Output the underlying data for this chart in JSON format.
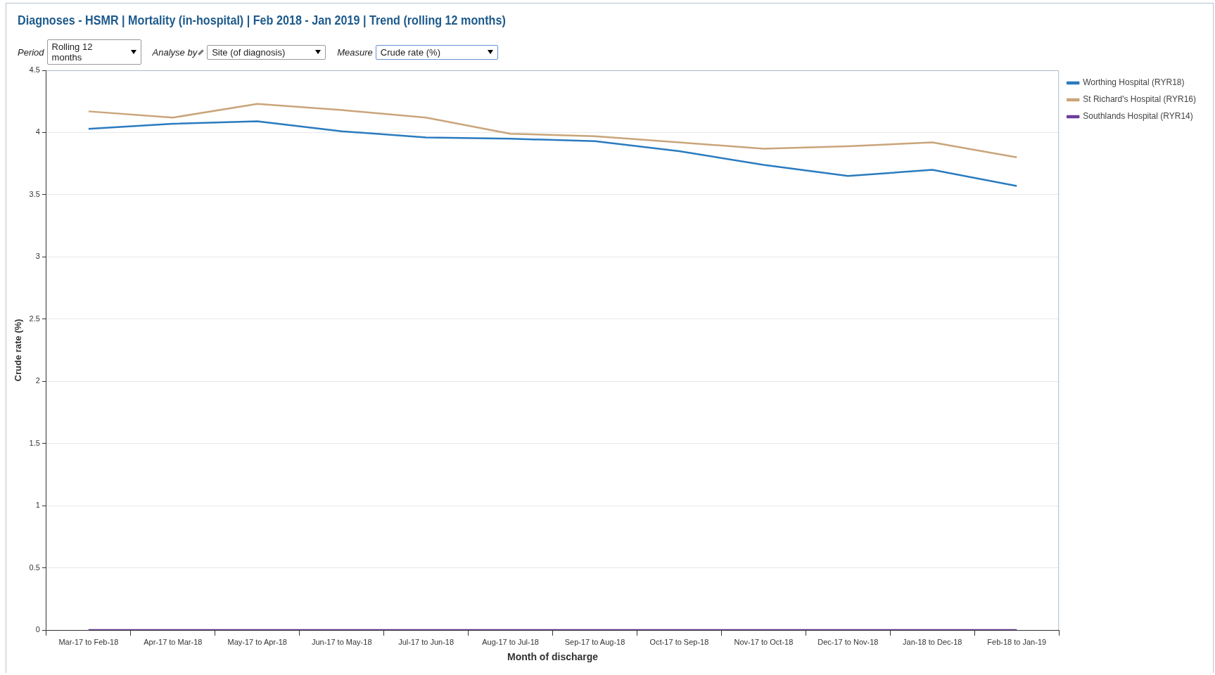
{
  "chart_data": {
    "type": "line",
    "title": "Diagnoses - HSMR | Mortality (in-hospital) | Feb 2018 - Jan 2019 | Trend (rolling 12 months)",
    "annotations": [
      "Period",
      "Rolling 12 months",
      "Analyse by",
      "Site (of diagnosis)",
      "Measure",
      "Crude rate (%)"
    ],
    "xlabel": "Month of discharge",
    "ylabel": "Crude rate (%)",
    "categories": [
      "Mar-17 to Feb-18",
      "Apr-17 to Mar-18",
      "May-17 to Apr-18",
      "Jun-17 to May-18",
      "Jul-17 to Jun-18",
      "Aug-17 to Jul-18",
      "Sep-17 to Aug-18",
      "Oct-17 to Sep-18",
      "Nov-17 to Oct-18",
      "Dec-17 to Nov-18",
      "Jan-18 to Dec-18",
      "Feb-18 to Jan-19"
    ],
    "series": [
      {
        "name": "Worthing Hospital (RYR18)",
        "color": "#2a7bbf",
        "values": [
          4.03,
          4.07,
          4.09,
          4.01,
          3.96,
          3.95,
          3.93,
          3.85,
          3.74,
          3.65,
          3.7,
          3.57
        ]
      },
      {
        "name": "St Richard's Hospital (RYR16)",
        "color": "#c9a57a",
        "values": [
          4.17,
          4.12,
          4.23,
          4.18,
          4.12,
          3.99,
          3.97,
          3.92,
          3.87,
          3.89,
          3.92,
          3.8
        ]
      },
      {
        "name": "Southlands Hospital (RYR14)",
        "color": "#6a3d9a",
        "values": [
          0,
          0,
          0,
          0,
          0,
          0,
          0,
          0,
          0,
          0,
          0,
          0
        ]
      }
    ],
    "ylim": [
      0,
      4.5
    ],
    "yticks": [
      0,
      0.5,
      1,
      1.5,
      2,
      2.5,
      3,
      3.5,
      4,
      4.5
    ],
    "grid": "y",
    "legend": "top right",
    "marker": "none",
    "line_style": "solid"
  }
}
